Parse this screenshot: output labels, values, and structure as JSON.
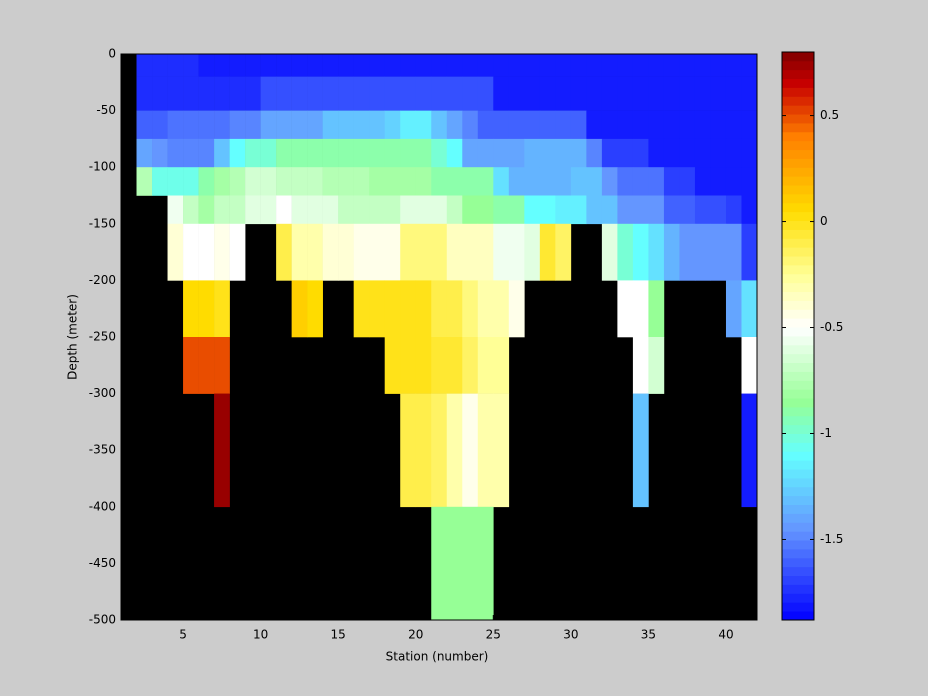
{
  "chart_data": {
    "type": "heatmap",
    "xlabel": "Station (number)",
    "ylabel": "Depth (meter)",
    "xlim": [
      1,
      42
    ],
    "xticks": [
      5,
      10,
      15,
      20,
      25,
      30,
      35,
      40
    ],
    "ylim": [
      -500,
      0
    ],
    "yticks": [
      0,
      -50,
      -100,
      -150,
      -200,
      -250,
      -300,
      -350,
      -400,
      -450,
      -500
    ],
    "clim": [
      -1.88,
      0.8
    ],
    "cticks": [
      0.5,
      0,
      -0.5,
      -1,
      -1.5
    ],
    "background": "#000000",
    "colormap": [
      {
        "value": -1.88,
        "color": "#0000ff"
      },
      {
        "value": -1.45,
        "color": "#6496ff"
      },
      {
        "value": -1.1,
        "color": "#64ffff"
      },
      {
        "value": -0.85,
        "color": "#96ff96"
      },
      {
        "value": -0.5,
        "color": "#ffffff"
      },
      {
        "value": -0.25,
        "color": "#ffff96"
      },
      {
        "value": 0.05,
        "color": "#ffdc00"
      },
      {
        "value": 0.4,
        "color": "#ff8000"
      },
      {
        "value": 0.65,
        "color": "#c80000"
      },
      {
        "value": 0.8,
        "color": "#800000"
      }
    ],
    "x_edges": [
      2,
      3,
      4,
      5,
      6,
      7,
      8,
      9,
      10,
      11,
      12,
      13,
      14,
      15,
      16,
      17,
      18,
      19,
      20,
      21,
      22,
      23,
      24,
      25,
      26,
      27,
      28,
      29,
      30,
      31,
      32,
      33,
      34,
      35,
      36,
      37,
      38,
      39,
      40,
      41,
      42
    ],
    "y_edges": [
      0,
      -20,
      -50,
      -75,
      -100,
      -125,
      -150,
      -200,
      -250,
      -300,
      -400,
      -500
    ],
    "z": [
      [
        -1.75,
        -1.75,
        -1.75,
        -1.75,
        -1.8,
        -1.8,
        -1.8,
        -1.8,
        -1.8,
        -1.8,
        -1.8,
        -1.8,
        -1.8,
        -1.8,
        -1.8,
        -1.8,
        -1.8,
        -1.8,
        -1.8,
        -1.8,
        -1.8,
        -1.8,
        -1.8,
        -1.8,
        -1.8,
        -1.8,
        -1.8,
        -1.8,
        -1.8,
        -1.8,
        -1.8,
        -1.8,
        -1.8,
        -1.8,
        -1.8,
        -1.8,
        -1.8,
        -1.8,
        -1.8,
        -1.8
      ],
      [
        -1.75,
        -1.75,
        -1.75,
        -1.75,
        -1.75,
        -1.75,
        -1.75,
        -1.75,
        -1.65,
        -1.65,
        -1.65,
        -1.65,
        -1.65,
        -1.65,
        -1.65,
        -1.65,
        -1.65,
        -1.65,
        -1.65,
        -1.65,
        -1.65,
        -1.65,
        -1.65,
        -1.8,
        -1.8,
        -1.8,
        -1.8,
        -1.8,
        -1.8,
        -1.8,
        -1.8,
        -1.8,
        -1.8,
        -1.8,
        -1.8,
        -1.8,
        -1.8,
        -1.8,
        -1.8,
        -1.8
      ],
      [
        -1.6,
        -1.6,
        -1.55,
        -1.55,
        -1.55,
        -1.55,
        -1.5,
        -1.5,
        -1.4,
        -1.4,
        -1.4,
        -1.4,
        -1.3,
        -1.3,
        -1.3,
        -1.3,
        -1.25,
        -1.15,
        -1.15,
        -1.3,
        -1.4,
        -1.5,
        -1.6,
        -1.6,
        -1.6,
        -1.6,
        -1.6,
        -1.6,
        -1.6,
        -1.8,
        -1.8,
        -1.8,
        -1.8,
        -1.8,
        -1.8,
        -1.8,
        -1.8,
        -1.8,
        -1.8,
        -1.8
      ],
      [
        -1.4,
        -1.45,
        -1.5,
        -1.5,
        -1.5,
        -1.3,
        -1.1,
        -1.0,
        -1.0,
        -0.9,
        -0.9,
        -0.9,
        -0.9,
        -0.9,
        -0.9,
        -0.9,
        -0.9,
        -0.9,
        -0.9,
        -1.0,
        -1.1,
        -1.4,
        -1.4,
        -1.4,
        -1.4,
        -1.35,
        -1.35,
        -1.35,
        -1.35,
        -1.5,
        -1.7,
        -1.7,
        -1.7,
        -1.8,
        -1.8,
        -1.8,
        -1.8,
        -1.8,
        -1.8,
        -1.8
      ],
      [
        -0.75,
        -1.05,
        -1.05,
        -1.05,
        -0.9,
        -0.8,
        -0.75,
        -0.65,
        -0.65,
        -0.7,
        -0.7,
        -0.7,
        -0.75,
        -0.75,
        -0.75,
        -0.8,
        -0.8,
        -0.8,
        -0.8,
        -0.9,
        -0.9,
        -0.9,
        -0.9,
        -1.2,
        -1.35,
        -1.35,
        -1.35,
        -1.35,
        -1.3,
        -1.3,
        -1.45,
        -1.55,
        -1.55,
        -1.55,
        -1.7,
        -1.7,
        -1.8,
        -1.8,
        -1.8,
        -1.8
      ],
      [
        null,
        null,
        -0.55,
        -0.7,
        -0.8,
        -0.7,
        -0.7,
        -0.6,
        -0.6,
        -0.5,
        -0.6,
        -0.6,
        -0.6,
        -0.7,
        -0.7,
        -0.7,
        -0.7,
        -0.6,
        -0.6,
        -0.6,
        -0.7,
        -0.85,
        -0.85,
        -0.9,
        -0.9,
        -1.1,
        -1.1,
        -1.15,
        -1.15,
        -1.3,
        -1.3,
        -1.45,
        -1.45,
        -1.45,
        -1.6,
        -1.6,
        -1.65,
        -1.65,
        -1.7,
        -1.8
      ],
      [
        null,
        null,
        -0.4,
        -0.5,
        -0.5,
        -0.45,
        -0.5,
        null,
        null,
        -0.1,
        -0.3,
        -0.3,
        -0.4,
        -0.4,
        -0.45,
        -0.45,
        -0.45,
        -0.2,
        -0.2,
        -0.2,
        -0.35,
        -0.35,
        -0.35,
        -0.55,
        -0.55,
        -0.6,
        -0.05,
        -0.15,
        null,
        null,
        -0.6,
        -1.0,
        -1.1,
        -1.2,
        -1.35,
        -1.45,
        -1.45,
        -1.45,
        -1.45,
        -1.7
      ],
      [
        null,
        null,
        null,
        0.05,
        0.05,
        0.0,
        null,
        null,
        null,
        null,
        0.1,
        0.05,
        null,
        null,
        0.0,
        0.0,
        0.0,
        0.0,
        0.0,
        -0.1,
        -0.1,
        -0.2,
        -0.3,
        -0.3,
        -0.45,
        null,
        null,
        null,
        null,
        null,
        null,
        -0.5,
        -0.5,
        -0.85,
        null,
        null,
        null,
        null,
        -1.4,
        -1.2
      ],
      [
        null,
        null,
        null,
        0.5,
        0.5,
        0.5,
        null,
        null,
        null,
        null,
        null,
        null,
        null,
        null,
        null,
        null,
        0.0,
        0.0,
        0.0,
        -0.05,
        -0.05,
        -0.15,
        -0.25,
        -0.25,
        null,
        null,
        null,
        null,
        null,
        null,
        null,
        null,
        -0.5,
        -0.65,
        null,
        null,
        null,
        null,
        null,
        -0.5
      ],
      [
        null,
        null,
        null,
        null,
        null,
        0.75,
        null,
        null,
        null,
        null,
        null,
        null,
        null,
        null,
        null,
        null,
        null,
        -0.1,
        -0.1,
        -0.15,
        -0.3,
        -0.45,
        -0.3,
        -0.3,
        null,
        null,
        null,
        null,
        null,
        null,
        null,
        null,
        -1.3,
        null,
        null,
        null,
        null,
        null,
        null,
        -1.8
      ],
      [
        null,
        null,
        null,
        null,
        null,
        null,
        null,
        null,
        null,
        null,
        null,
        null,
        null,
        null,
        null,
        null,
        null,
        null,
        null,
        -0.85,
        -0.85,
        -0.85,
        -0.85,
        null,
        null,
        null,
        null,
        null,
        null,
        null,
        null,
        null,
        null,
        null,
        null,
        null,
        null,
        null,
        null,
        null
      ]
    ]
  }
}
